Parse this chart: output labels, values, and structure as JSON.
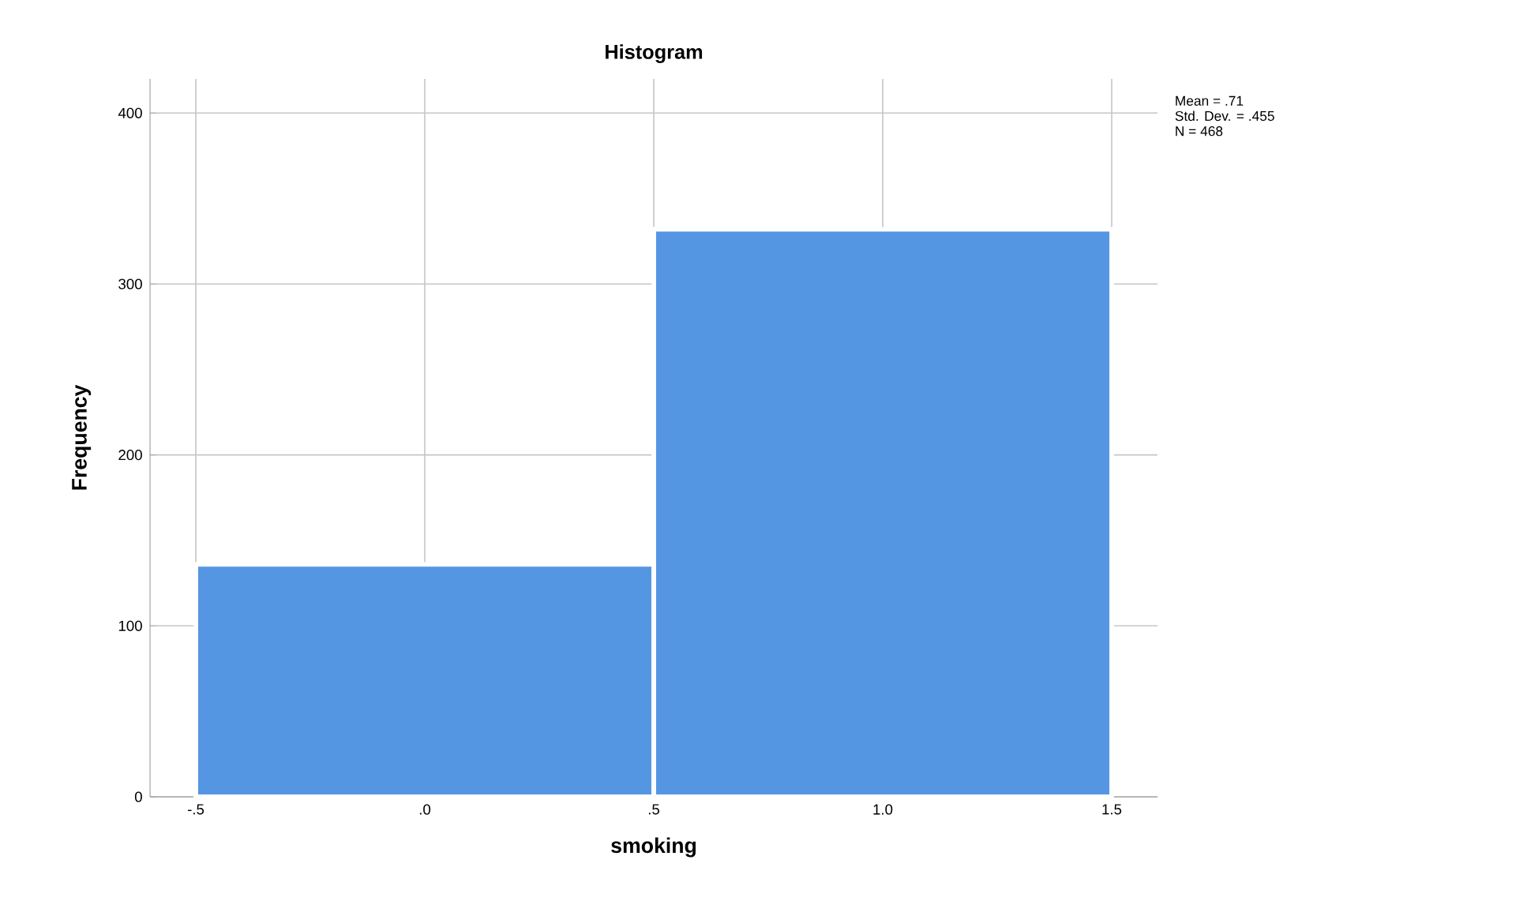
{
  "chart_data": {
    "type": "histogram",
    "title": "Histogram",
    "xlabel": "smoking",
    "ylabel": "Frequency",
    "bins": [
      -0.5,
      0.5,
      1.5
    ],
    "values": [
      136,
      332
    ],
    "color": "#5596e3",
    "xlim": [
      -0.6,
      1.6
    ],
    "ylim": [
      0,
      420
    ],
    "xticks": [
      {
        "value": -0.5,
        "label": "-.5"
      },
      {
        "value": 0,
        "label": ".0"
      },
      {
        "value": 0.5,
        "label": ".5"
      },
      {
        "value": 1,
        "label": "1.0"
      },
      {
        "value": 1.5,
        "label": "1.5"
      }
    ],
    "yticks": [
      0,
      100,
      200,
      300,
      400
    ],
    "grid": true,
    "annotations": [
      "Mean = .71",
      "Std. Dev. = .455",
      "N = 468"
    ]
  }
}
